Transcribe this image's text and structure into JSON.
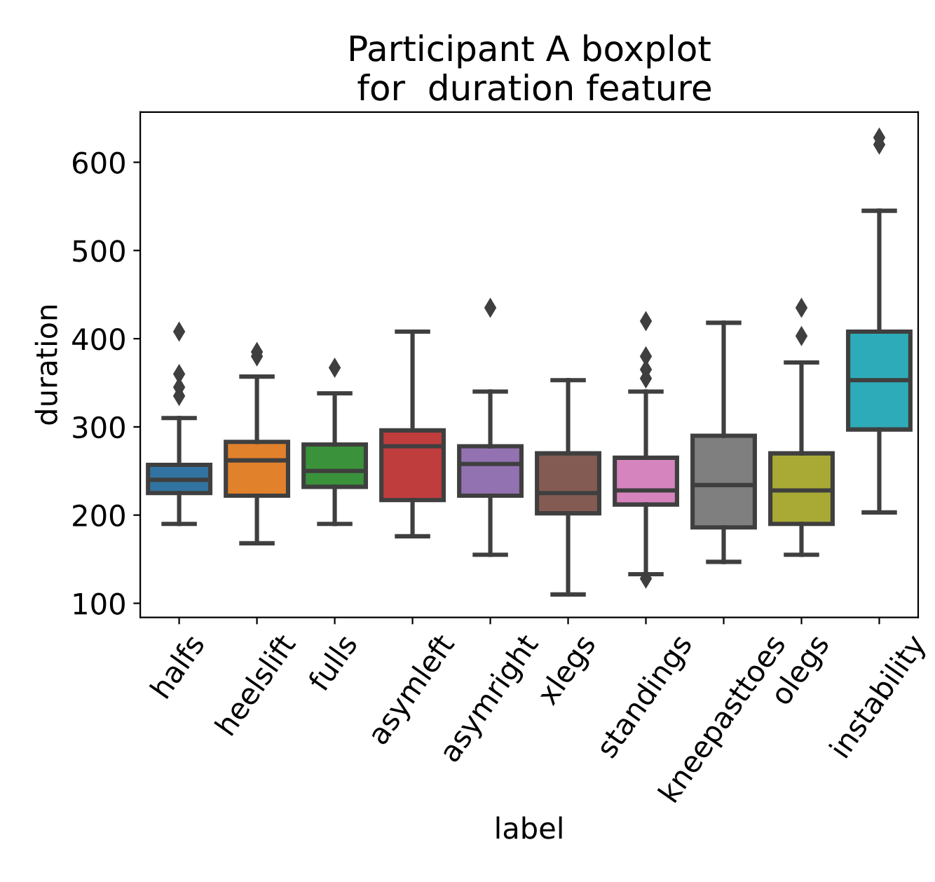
{
  "chart_data": {
    "type": "box",
    "title": "Participant A boxplot\n for  duration feature",
    "xlabel": "label",
    "ylabel": "duration",
    "categories": [
      "halfs",
      "heelslift",
      "fulls",
      "asymleft",
      "asymright",
      "xlegs",
      "standings",
      "kneepasttoes",
      "olegs",
      "instability"
    ],
    "colors": [
      "#3274a1",
      "#e1812c",
      "#3a923a",
      "#c03d3e",
      "#9372b2",
      "#845b53",
      "#d684bd",
      "#7f7f7f",
      "#a9aa35",
      "#2eabb8"
    ],
    "boxes": [
      {
        "low": 190,
        "q1": 225,
        "median": 240,
        "q3": 257,
        "high": 310,
        "outliers": [
          335,
          345,
          360,
          408
        ]
      },
      {
        "low": 168,
        "q1": 222,
        "median": 262,
        "q3": 283,
        "high": 357,
        "outliers": [
          380,
          385
        ]
      },
      {
        "low": 190,
        "q1": 232,
        "median": 250,
        "q3": 280,
        "high": 338,
        "outliers": [
          367
        ]
      },
      {
        "low": 176,
        "q1": 217,
        "median": 278,
        "q3": 296,
        "high": 408
      },
      {
        "low": 155,
        "q1": 222,
        "median": 258,
        "q3": 278,
        "high": 340,
        "outliers": [
          435
        ]
      },
      {
        "low": 110,
        "q1": 202,
        "median": 225,
        "q3": 270,
        "high": 353
      },
      {
        "low": 133,
        "q1": 212,
        "median": 228,
        "q3": 265,
        "high": 340,
        "outliers": [
          128,
          355,
          365,
          380,
          420
        ]
      },
      {
        "low": 147,
        "q1": 186,
        "median": 234,
        "q3": 290,
        "high": 418
      },
      {
        "low": 155,
        "q1": 190,
        "median": 228,
        "q3": 270,
        "high": 373,
        "outliers": [
          403,
          435
        ]
      },
      {
        "low": 203,
        "q1": 297,
        "median": 353,
        "q3": 408,
        "high": 545,
        "outliers": [
          620,
          628
        ]
      }
    ],
    "ylim": [
      84,
      657
    ],
    "yticks": [
      100,
      200,
      300,
      400,
      500,
      600
    ],
    "grid": false,
    "marker": "diamond"
  }
}
